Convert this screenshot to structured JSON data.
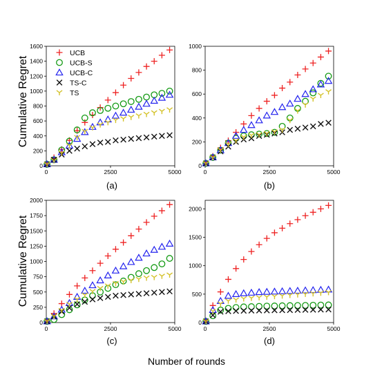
{
  "figure": {
    "ylabel": "Cumulative Regret",
    "xlabel": "Number of rounds",
    "legend_position": "top-left"
  },
  "legend": [
    {
      "name": "UCB",
      "color": "#ee2222",
      "marker": "plus"
    },
    {
      "name": "UCB-S",
      "color": "#119911",
      "marker": "circle"
    },
    {
      "name": "UCB-C",
      "color": "#2222ee",
      "marker": "triangle"
    },
    {
      "name": "TS-C",
      "color": "#111111",
      "marker": "x"
    },
    {
      "name": "TS",
      "color": "#d4c22a",
      "marker": "tri-down"
    }
  ],
  "chart_data": [
    {
      "type": "scatter",
      "label": "(a)",
      "xlim": [
        0,
        5000
      ],
      "ylim": [
        0,
        1600
      ],
      "xticks": [
        0,
        2500,
        5000
      ],
      "yticks": [
        0,
        200,
        400,
        600,
        800,
        1000,
        1200,
        1400,
        1600
      ],
      "x": [
        30,
        300,
        600,
        900,
        1200,
        1500,
        1800,
        2100,
        2400,
        2700,
        3000,
        3300,
        3600,
        3900,
        4200,
        4500,
        4800
      ],
      "series": [
        {
          "name": "UCB",
          "values": [
            20,
            110,
            220,
            340,
            470,
            580,
            680,
            780,
            880,
            980,
            1080,
            1170,
            1250,
            1330,
            1400,
            1480,
            1550
          ]
        },
        {
          "name": "UCB-S",
          "values": [
            20,
            80,
            210,
            330,
            480,
            640,
            710,
            740,
            770,
            800,
            830,
            860,
            890,
            920,
            950,
            970,
            1000
          ]
        },
        {
          "name": "UCB-C",
          "values": [
            20,
            80,
            180,
            270,
            360,
            450,
            520,
            580,
            620,
            670,
            710,
            750,
            790,
            830,
            870,
            910,
            950
          ]
        },
        {
          "name": "TS-C",
          "values": [
            20,
            80,
            150,
            200,
            230,
            260,
            290,
            310,
            320,
            340,
            350,
            360,
            370,
            380,
            390,
            400,
            410
          ]
        },
        {
          "name": "TS",
          "values": [
            20,
            70,
            170,
            270,
            380,
            460,
            510,
            550,
            580,
            610,
            630,
            650,
            670,
            690,
            710,
            730,
            750
          ]
        }
      ]
    },
    {
      "type": "scatter",
      "label": "(b)",
      "xlim": [
        0,
        5000
      ],
      "ylim": [
        0,
        1000
      ],
      "xticks": [
        0,
        2500,
        5000
      ],
      "yticks": [
        0,
        200,
        400,
        600,
        800,
        1000
      ],
      "x": [
        30,
        300,
        600,
        900,
        1200,
        1500,
        1800,
        2100,
        2400,
        2700,
        3000,
        3300,
        3600,
        3900,
        4200,
        4500,
        4800
      ],
      "series": [
        {
          "name": "UCB",
          "values": [
            20,
            80,
            150,
            210,
            280,
            350,
            420,
            480,
            540,
            590,
            650,
            700,
            760,
            810,
            860,
            910,
            960
          ]
        },
        {
          "name": "UCB-S",
          "values": [
            20,
            70,
            130,
            190,
            230,
            250,
            260,
            265,
            270,
            280,
            330,
            400,
            480,
            540,
            610,
            690,
            750
          ]
        },
        {
          "name": "UCB-C",
          "values": [
            20,
            70,
            130,
            190,
            250,
            300,
            340,
            380,
            420,
            450,
            490,
            520,
            560,
            600,
            640,
            680,
            710
          ]
        },
        {
          "name": "TS-C",
          "values": [
            20,
            70,
            120,
            160,
            200,
            220,
            230,
            250,
            260,
            270,
            280,
            300,
            310,
            320,
            330,
            350,
            360
          ]
        },
        {
          "name": "TS",
          "values": [
            20,
            70,
            130,
            180,
            210,
            240,
            255,
            260,
            270,
            285,
            300,
            380,
            460,
            510,
            560,
            590,
            620
          ]
        }
      ]
    },
    {
      "type": "scatter",
      "label": "(c)",
      "xlim": [
        0,
        5000
      ],
      "ylim": [
        0,
        2000
      ],
      "xticks": [
        0,
        2500,
        5000
      ],
      "yticks": [
        0,
        250,
        500,
        750,
        1000,
        1250,
        1500,
        1750,
        2000
      ],
      "x": [
        30,
        300,
        600,
        900,
        1200,
        1500,
        1800,
        2100,
        2400,
        2700,
        3000,
        3300,
        3600,
        3900,
        4200,
        4500,
        4800
      ],
      "series": [
        {
          "name": "UCB",
          "values": [
            20,
            150,
            310,
            460,
            600,
            730,
            850,
            970,
            1090,
            1200,
            1310,
            1420,
            1530,
            1640,
            1740,
            1830,
            1930
          ]
        },
        {
          "name": "UCB-S",
          "values": [
            20,
            50,
            130,
            210,
            290,
            370,
            440,
            500,
            560,
            620,
            680,
            740,
            800,
            850,
            900,
            960,
            1050
          ]
        },
        {
          "name": "UCB-C",
          "values": [
            20,
            100,
            210,
            320,
            420,
            520,
            610,
            690,
            770,
            850,
            920,
            990,
            1060,
            1130,
            1190,
            1240,
            1290
          ]
        },
        {
          "name": "TS-C",
          "values": [
            20,
            100,
            180,
            240,
            300,
            340,
            380,
            400,
            420,
            440,
            450,
            460,
            470,
            480,
            490,
            500,
            510
          ]
        },
        {
          "name": "TS",
          "values": [
            20,
            100,
            200,
            300,
            380,
            450,
            510,
            560,
            600,
            640,
            670,
            690,
            710,
            730,
            740,
            760,
            780
          ]
        }
      ]
    },
    {
      "type": "scatter",
      "label": "(d)",
      "xlim": [
        0,
        5000
      ],
      "ylim": [
        0,
        2150
      ],
      "xticks": [
        0,
        2500,
        5000
      ],
      "yticks": [
        0,
        500,
        1000,
        1500,
        2000
      ],
      "x": [
        30,
        300,
        600,
        900,
        1200,
        1500,
        1800,
        2100,
        2400,
        2700,
        3000,
        3300,
        3600,
        3900,
        4200,
        4500,
        4800
      ],
      "series": [
        {
          "name": "UCB",
          "values": [
            20,
            300,
            540,
            760,
            950,
            1110,
            1250,
            1370,
            1480,
            1580,
            1660,
            1740,
            1810,
            1880,
            1940,
            2000,
            2060
          ]
        },
        {
          "name": "UCB-S",
          "values": [
            20,
            120,
            220,
            250,
            265,
            275,
            280,
            285,
            290,
            292,
            295,
            298,
            300,
            302,
            305,
            308,
            310
          ]
        },
        {
          "name": "UCB-C",
          "values": [
            20,
            220,
            380,
            470,
            500,
            515,
            525,
            535,
            540,
            545,
            550,
            555,
            560,
            565,
            570,
            575,
            580
          ]
        },
        {
          "name": "TS-C",
          "values": [
            20,
            130,
            190,
            200,
            205,
            208,
            210,
            212,
            214,
            216,
            218,
            220,
            222,
            224,
            226,
            228,
            230
          ]
        },
        {
          "name": "TS",
          "values": [
            20,
            200,
            330,
            380,
            400,
            420,
            430,
            440,
            450,
            460,
            470,
            480,
            490,
            500,
            510,
            520,
            530
          ]
        }
      ]
    }
  ]
}
